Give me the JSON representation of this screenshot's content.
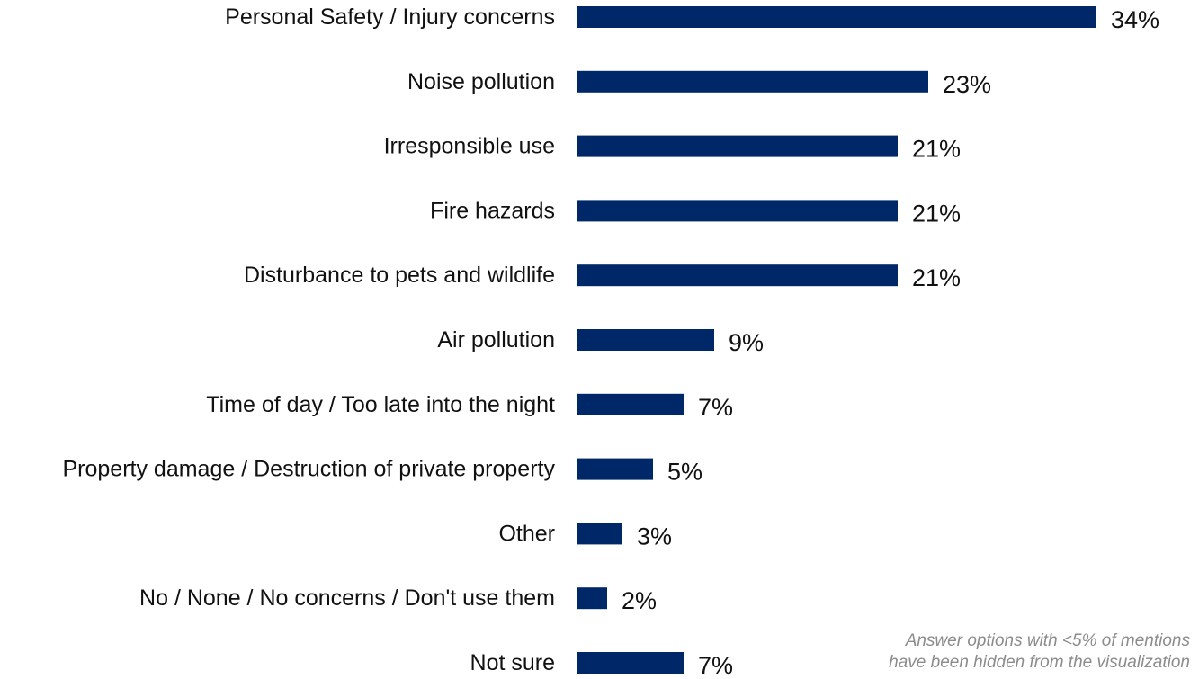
{
  "chart_data": {
    "type": "bar",
    "orientation": "horizontal",
    "categories": [
      "Personal Safety / Injury concerns",
      "Noise pollution",
      "Irresponsible use",
      "Fire hazards",
      "Disturbance to pets and wildlife",
      "Air pollution",
      "Time of day / Too late into the night",
      "Property damage / Destruction of private property",
      "Other",
      "No / None / No concerns / Don't use them",
      "Not sure"
    ],
    "values": [
      34,
      23,
      21,
      21,
      21,
      9,
      7,
      5,
      3,
      2,
      7
    ],
    "value_labels": [
      "34%",
      "23%",
      "21%",
      "21%",
      "21%",
      "9%",
      "7%",
      "5%",
      "3%",
      "2%",
      "7%"
    ],
    "bar_color": "#002868",
    "grid": false,
    "legend": "none"
  },
  "footnote": {
    "line1": "Answer options with <5% of mentions",
    "line2": "have been hidden from the visualization"
  }
}
